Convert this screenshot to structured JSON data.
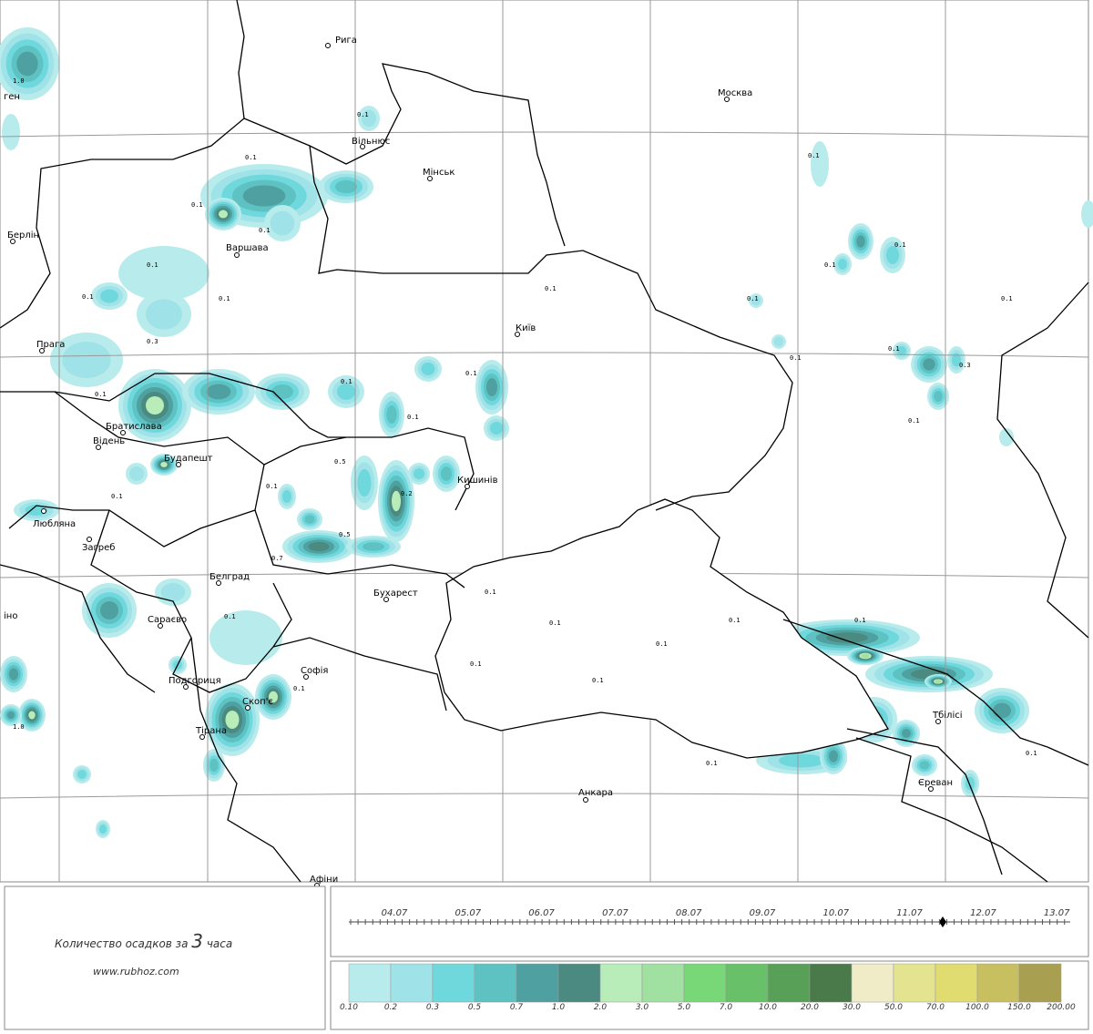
{
  "map": {
    "cities": [
      "Рига",
      "Москва",
      "Вільнюс",
      "Мінськ",
      "Берлін",
      "Варшава",
      "Прага",
      "Київ",
      "Братислава",
      "Відень",
      "Будапешт",
      "Кишинів",
      "Любляна",
      "Загреб",
      "Белград",
      "Бухарест",
      "Сараєво",
      "Подгориця",
      "Софія",
      "Скоп'є",
      "Тірана",
      "Тбілісі",
      "Єреван",
      "Анкара",
      "Афіни",
      "ген",
      "іно"
    ],
    "contour_labels": [
      "1.0",
      "0.1",
      "0.1",
      "0.1",
      "0.1",
      "0.1",
      "0.1",
      "0.1",
      "0.1",
      "0.1",
      "0.1",
      "0.1",
      "0.1",
      "0.1",
      "0.3",
      "0.1",
      "0.1",
      "0.3",
      "0.1",
      "0.1",
      "0.1",
      "0.1",
      "0.1",
      "0.5",
      "0.1",
      "0.2",
      "0.1",
      "0.5",
      "0.7",
      "0.1",
      "0.1",
      "0.1",
      "0.1",
      "0.1",
      "0.1",
      "0.1",
      "0.1",
      "1.0",
      "0.1",
      "0.1",
      "0.1"
    ]
  },
  "caption": {
    "text": "Количество осадков за",
    "hours": "3",
    "unit": "часа",
    "site": "www.rubhoz.com"
  },
  "timeline": {
    "dates": [
      "04.07",
      "05.07",
      "06.07",
      "07.07",
      "08.07",
      "09.07",
      "10.07",
      "11.07",
      "12.07",
      "13.07"
    ]
  },
  "legend": {
    "labels": [
      "0.10",
      "0.2",
      "0.3",
      "0.5",
      "0.7",
      "1.0",
      "2.0",
      "3.0",
      "5.0",
      "7.0",
      "10.0",
      "20.0",
      "30.0",
      "50.0",
      "70.0",
      "100.0",
      "150.0",
      "200.00"
    ],
    "colors": [
      "#b8ecec",
      "#9fe2e8",
      "#6fd8dc",
      "#5ec2c2",
      "#4fa0a0",
      "#4a8a80",
      "#b8ecb8",
      "#a0e0a0",
      "#78d878",
      "#68c068",
      "#58a058",
      "#4a7a4a",
      "#f0ecc8",
      "#e4e490",
      "#e0dc70",
      "#c8c060",
      "#a8a050"
    ]
  }
}
